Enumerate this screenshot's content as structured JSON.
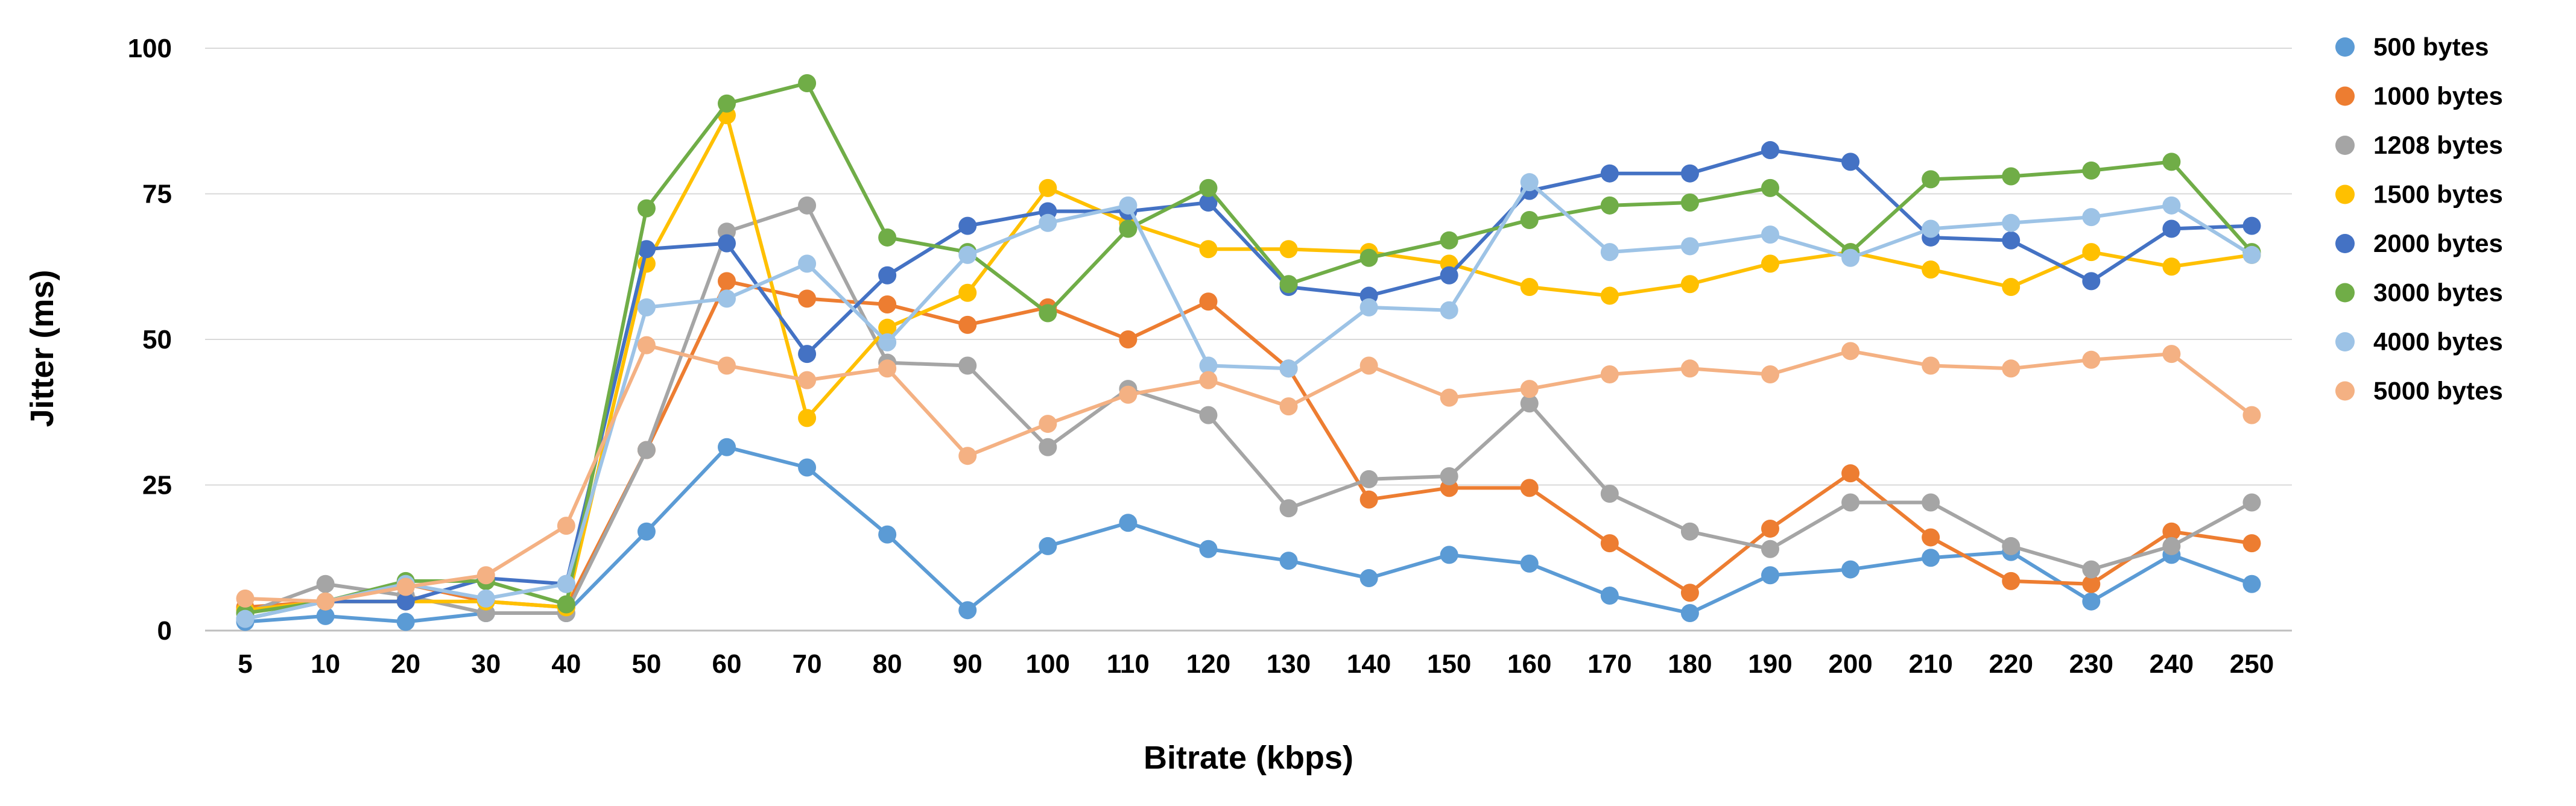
{
  "chart_data": {
    "type": "line",
    "title": "",
    "xlabel": "Bitrate (kbps)",
    "ylabel": "Jitter (ms)",
    "ylim": [
      0,
      100
    ],
    "yticks": [
      0,
      25,
      50,
      75,
      100
    ],
    "grid": true,
    "legend_position": "right",
    "categories": [
      "5",
      "10",
      "20",
      "30",
      "40",
      "50",
      "60",
      "70",
      "80",
      "90",
      "100",
      "110",
      "120",
      "130",
      "140",
      "150",
      "160",
      "170",
      "180",
      "190",
      "200",
      "210",
      "220",
      "230",
      "240",
      "250"
    ],
    "series": [
      {
        "name": "500 bytes",
        "color": "#5B9BD5",
        "values": [
          1.5,
          2.5,
          1.5,
          3,
          3,
          17,
          31.5,
          28,
          16.5,
          3.5,
          14.5,
          18.5,
          14,
          12,
          9,
          13,
          11.5,
          6,
          3,
          9.5,
          10.5,
          12.5,
          13.5,
          5,
          13,
          8
        ]
      },
      {
        "name": "1000 bytes",
        "color": "#ED7D31",
        "values": [
          4,
          5,
          8,
          5,
          4,
          31,
          60,
          57,
          56,
          52.5,
          55.5,
          50,
          56.5,
          45,
          22.5,
          24.5,
          24.5,
          15,
          6.5,
          17.5,
          27,
          16,
          8.5,
          8,
          17,
          15
        ]
      },
      {
        "name": "1208 bytes",
        "color": "#A5A5A5",
        "values": [
          3,
          8,
          6,
          3,
          3,
          31,
          68.5,
          73,
          46,
          45.5,
          31.5,
          41.5,
          37,
          21,
          26,
          26.5,
          39,
          23.5,
          17,
          14,
          22,
          22,
          14.5,
          10.5,
          14.5,
          22
        ]
      },
      {
        "name": "1500 bytes",
        "color": "#FFC000",
        "values": [
          3.5,
          5,
          5,
          5,
          4,
          63,
          88.5,
          36.5,
          52,
          58,
          76,
          70,
          65.5,
          65.5,
          65,
          63,
          59,
          57.5,
          59.5,
          63,
          65,
          62,
          59,
          65,
          62.5,
          64.5
        ]
      },
      {
        "name": "2000 bytes",
        "color": "#4472C4",
        "values": [
          2,
          5,
          5,
          9,
          8,
          65.5,
          66.5,
          47.5,
          61,
          69.5,
          72,
          72,
          73.5,
          59,
          57.5,
          61,
          75.5,
          78.5,
          78.5,
          82.5,
          80.5,
          67.5,
          67,
          60,
          69,
          69.5
        ]
      },
      {
        "name": "3000 bytes",
        "color": "#70AD47",
        "values": [
          3,
          5,
          8.5,
          8.5,
          4.5,
          72.5,
          90.5,
          94,
          67.5,
          65,
          54.5,
          69,
          76,
          59.5,
          64,
          67,
          70.5,
          73,
          73.5,
          76,
          65,
          77.5,
          78,
          79,
          80.5,
          65
        ]
      },
      {
        "name": "4000 bytes",
        "color": "#9DC3E6",
        "values": [
          2,
          5,
          8,
          5.5,
          8,
          55.5,
          57,
          63,
          49.5,
          64.5,
          70,
          73,
          45.5,
          45,
          55.5,
          55,
          77,
          65,
          66,
          68,
          64,
          69,
          70,
          71,
          73,
          64.5
        ]
      },
      {
        "name": "5000 bytes",
        "color": "#F4B183",
        "values": [
          5.5,
          5,
          7.5,
          9.5,
          18,
          49,
          45.5,
          43,
          45,
          30,
          35.5,
          40.5,
          43,
          38.5,
          45.5,
          40,
          41.5,
          44,
          45,
          44,
          48,
          45.5,
          45,
          46.5,
          47.5,
          37
        ]
      }
    ]
  }
}
